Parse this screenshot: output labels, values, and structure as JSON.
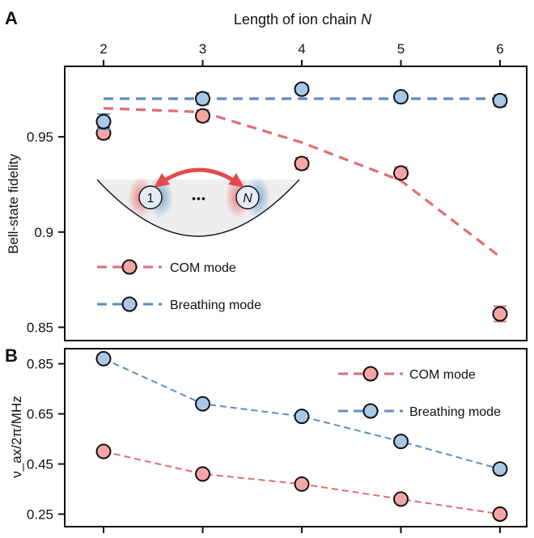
{
  "chart_data": [
    {
      "panel": "A",
      "type": "scatter",
      "top_axis_label": "Length of ion chain",
      "top_axis_label_var": "N",
      "ylabel": "Bell-state fidelity",
      "x": [
        2,
        3,
        4,
        5,
        6
      ],
      "xlim": [
        1.6,
        6.35
      ],
      "ylim": [
        0.843,
        0.987
      ],
      "yticks": [
        0.85,
        0.9,
        0.95
      ],
      "ytick_labels": [
        "0.85",
        "0.9",
        "0.95"
      ],
      "colors": {
        "com": "#e26d70",
        "breathing": "#5b8fbe"
      },
      "series": [
        {
          "name": "COM mode",
          "marker_fill": "#f4a6a6",
          "points": [
            0.952,
            0.961,
            0.936,
            0.931,
            0.857
          ],
          "errors": [
            0.003,
            0.003,
            0.003,
            0.003,
            0.004
          ],
          "trend": [
            0.965,
            0.963,
            0.947,
            0.927,
            0.887
          ]
        },
        {
          "name": "Breathing mode",
          "marker_fill": "#a9c8e6",
          "points": [
            0.958,
            0.97,
            0.975,
            0.971,
            0.969
          ],
          "errors": [
            0.004,
            0.003,
            0.002,
            0.002,
            0.003
          ],
          "trend": [
            0.97,
            0.97,
            0.97,
            0.97,
            0.97
          ]
        }
      ],
      "inset": {
        "left_ion": "1",
        "dots": "•••",
        "right_ion": "N"
      }
    },
    {
      "panel": "B",
      "type": "line",
      "ylabel": "ν_ax/2π/MHz",
      "x": [
        2,
        3,
        4,
        5,
        6
      ],
      "xticks": [
        "2",
        "3",
        "4",
        "5",
        "6"
      ],
      "ylim": [
        0.2,
        0.91
      ],
      "yticks": [
        0.25,
        0.45,
        0.65,
        0.85
      ],
      "ytick_labels": [
        "0.25",
        "0.45",
        "0.65",
        "0.85"
      ],
      "series": [
        {
          "name": "COM mode",
          "marker_fill": "#f4a6a6",
          "values": [
            0.5,
            0.41,
            0.37,
            0.31,
            0.25
          ]
        },
        {
          "name": "Breathing mode",
          "marker_fill": "#a9c8e6",
          "values": [
            0.87,
            0.69,
            0.64,
            0.54,
            0.43
          ]
        }
      ]
    }
  ],
  "panel_labels": [
    "A",
    "B"
  ],
  "legend_a": {
    "com": "COM mode",
    "breathing": "Breathing mode"
  },
  "legend_b": {
    "com": "COM mode",
    "breathing": "Breathing mode"
  }
}
